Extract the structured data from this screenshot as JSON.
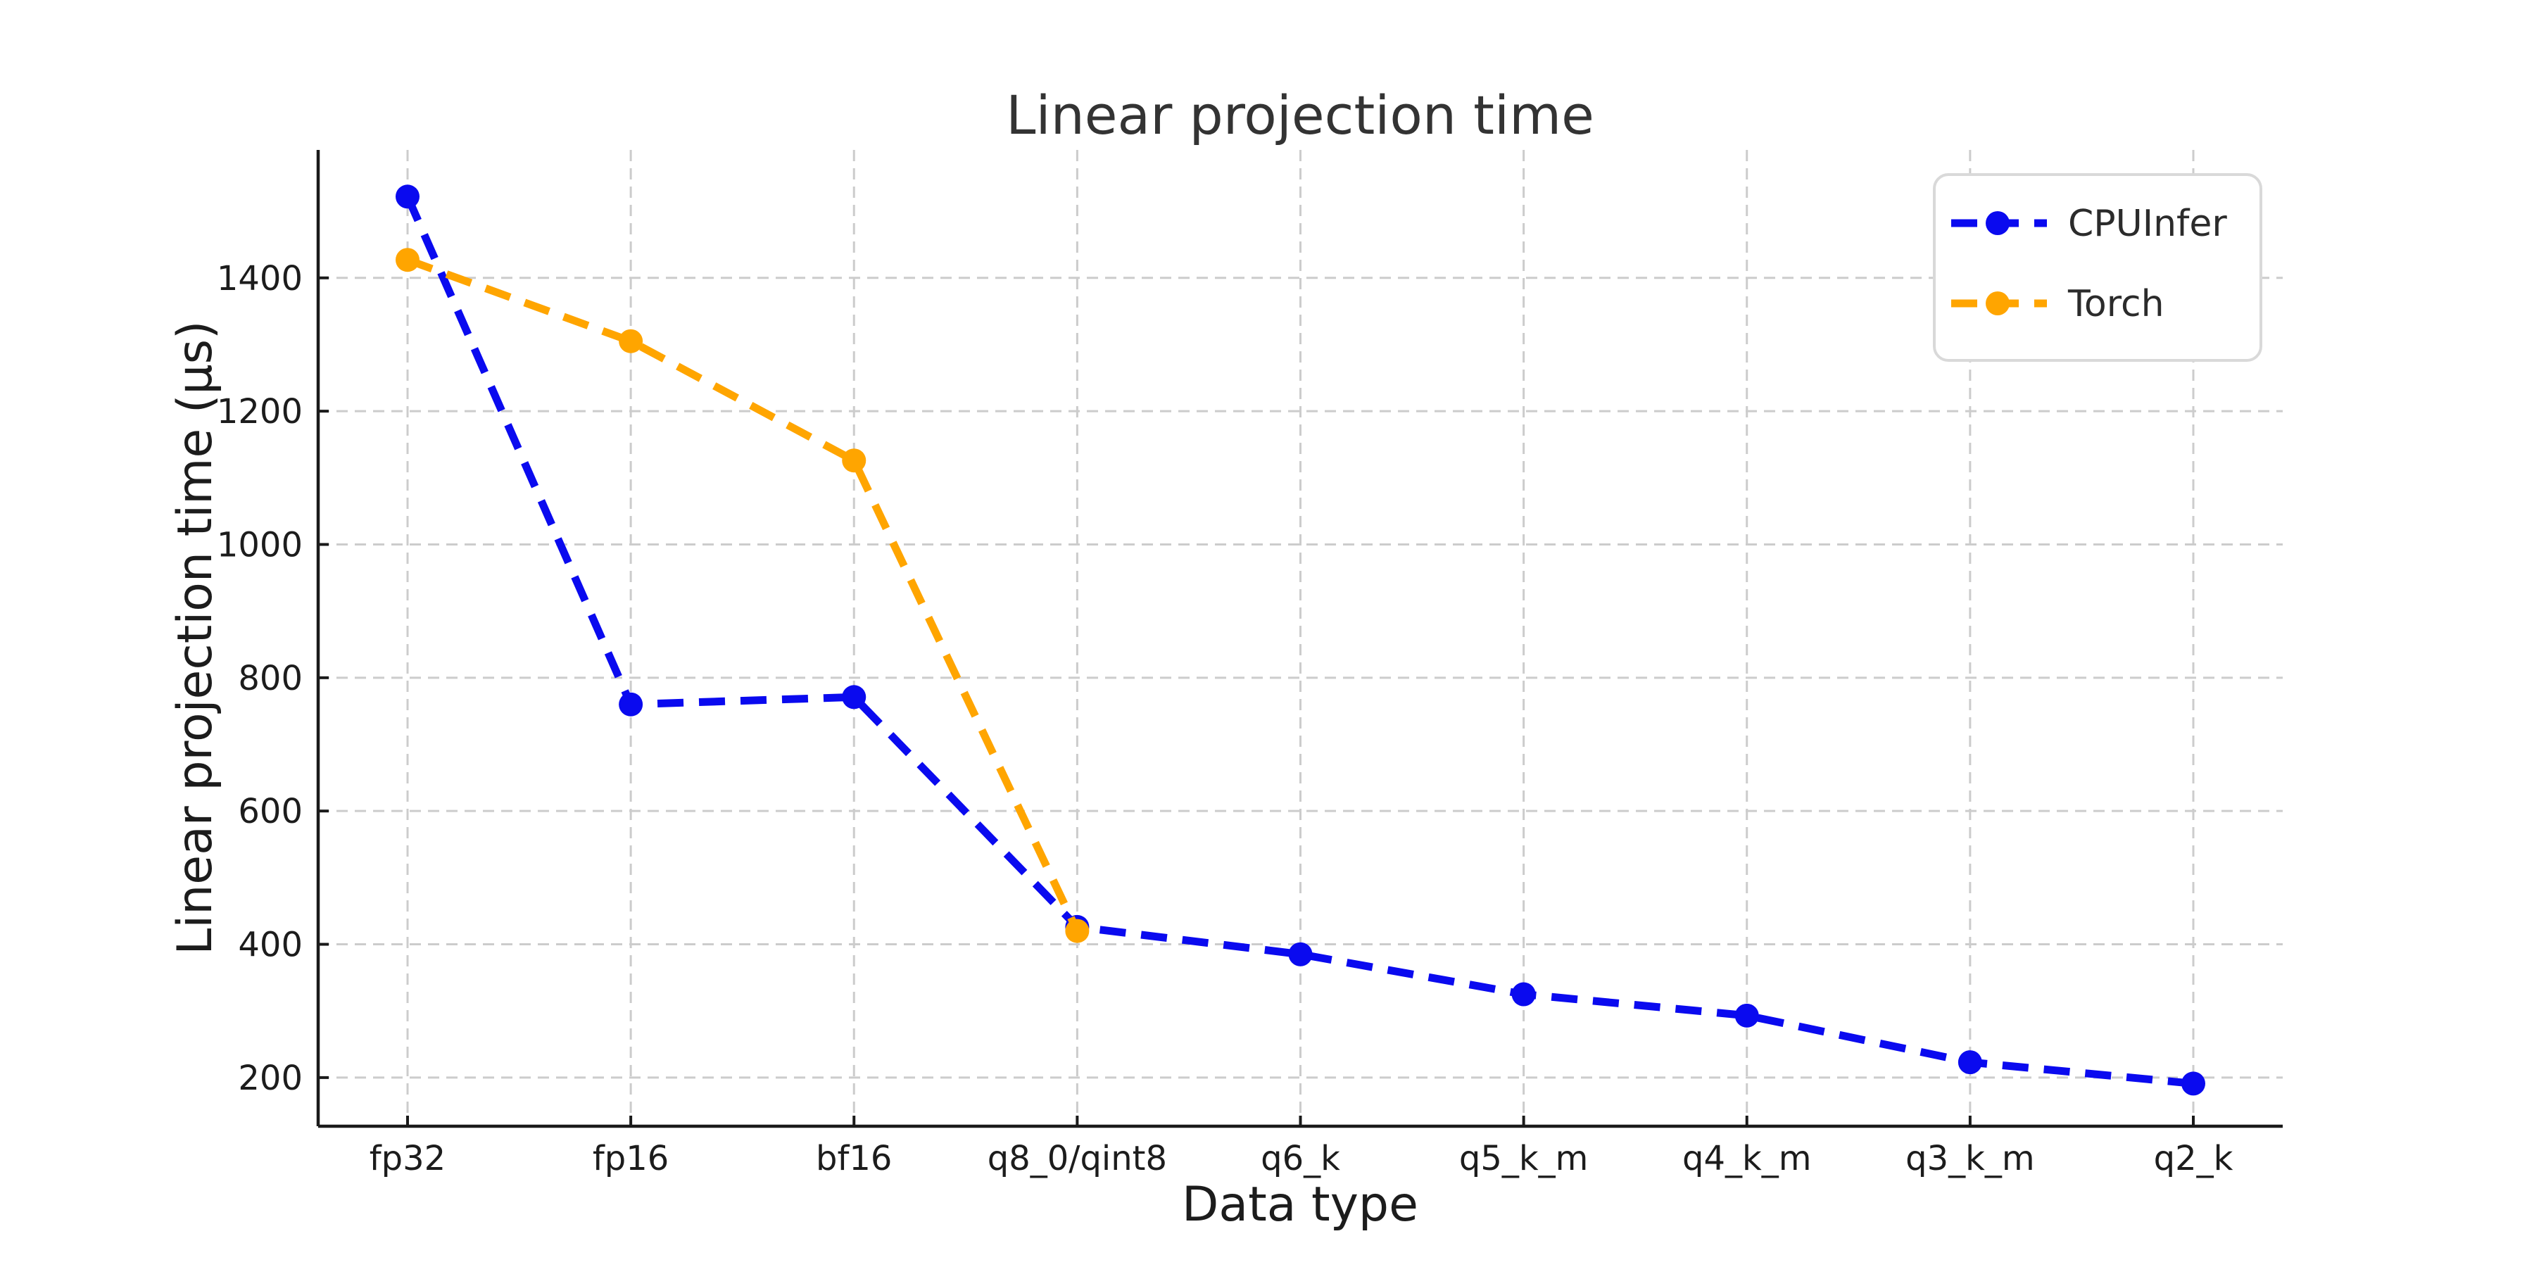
{
  "figure": {
    "title": "Linear projection time",
    "xlabel": "Data type",
    "ylabel": "Linear projection time (μs)"
  },
  "chart_data": {
    "type": "line",
    "title": "Linear projection time",
    "xlabel": "Data type",
    "ylabel": "Linear projection time (μs)",
    "categories": [
      "fp32",
      "fp16",
      "bf16",
      "q8_0/qint8",
      "q6_k",
      "q5_k_m",
      "q4_k_m",
      "q3_k_m",
      "q2_k"
    ],
    "series": [
      {
        "name": "CPUInfer",
        "color": "#0a0aef",
        "values": [
          1522,
          760,
          771,
          426,
          385,
          325,
          293,
          223,
          191
        ]
      },
      {
        "name": "Torch",
        "color": "#ffa500",
        "values": [
          1427,
          1305,
          1126,
          420,
          null,
          null,
          null,
          null,
          null
        ]
      }
    ],
    "yticks": [
      200,
      400,
      600,
      800,
      1000,
      1200,
      1400
    ],
    "ylim": [
      127,
      1592
    ],
    "grid": true,
    "grid_style": "dashed",
    "line_style": "dashed",
    "marker": "circle",
    "legend_position": "upper right",
    "legend_entries": [
      "CPUInfer",
      "Torch"
    ]
  },
  "colors": {
    "cpuinfer": "#0a0aef",
    "torch": "#ffa500",
    "grid": "#cccccc",
    "spine": "#1a1a1a",
    "legend_border": "#d9d9d9",
    "background": "#ffffff"
  }
}
